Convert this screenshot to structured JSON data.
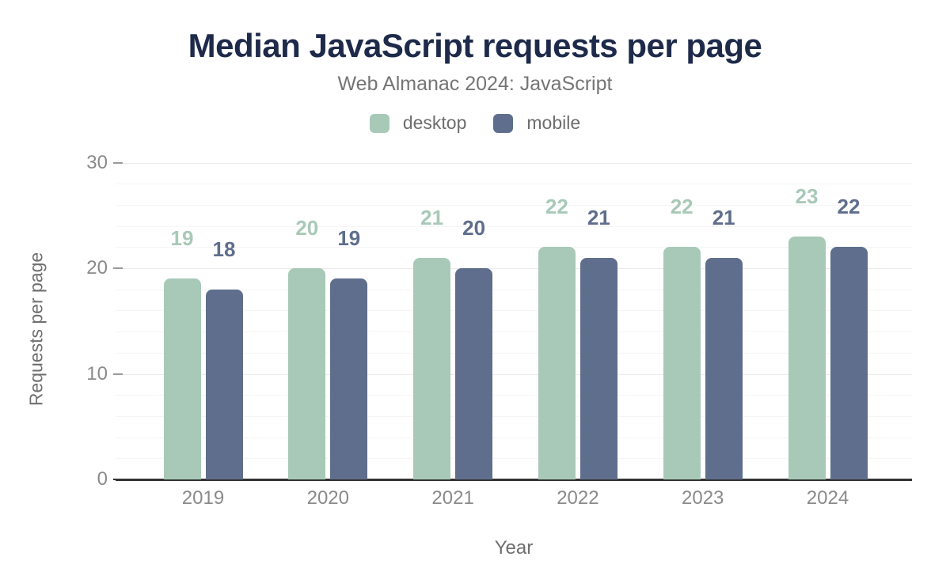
{
  "header": {
    "title": "Median JavaScript requests per page",
    "subtitle": "Web Almanac 2024: JavaScript"
  },
  "colors": {
    "title_text": "#1e2a4a",
    "subtitle_text": "#757575",
    "axis_line": "#333333",
    "tick_text": "#8a8a8a",
    "axis_title_text": "#6f6f6f",
    "major_gridline": "#ebebeb",
    "minor_gridline": "#f5f5f5",
    "tick_mark": "#9a9a9a",
    "desktop": "#a8c9b8",
    "mobile": "#5f6e8c"
  },
  "chart_data": {
    "type": "bar",
    "title": "Median JavaScript requests per page",
    "subtitle": "Web Almanac 2024: JavaScript",
    "categories": [
      "2019",
      "2020",
      "2021",
      "2022",
      "2023",
      "2024"
    ],
    "series": [
      {
        "name": "desktop",
        "color": "#a8c9b8",
        "values": [
          19,
          20,
          21,
          22,
          22,
          23
        ]
      },
      {
        "name": "mobile",
        "color": "#5f6e8c",
        "values": [
          18,
          19,
          20,
          21,
          21,
          22
        ]
      }
    ],
    "xlabel": "Year",
    "ylabel": "Requests per page",
    "ylim": [
      0,
      30
    ],
    "yticks": [
      0,
      10,
      20,
      30
    ],
    "minor_grid_step": 2,
    "grid": true,
    "legend_position": "top",
    "data_labels": true
  }
}
